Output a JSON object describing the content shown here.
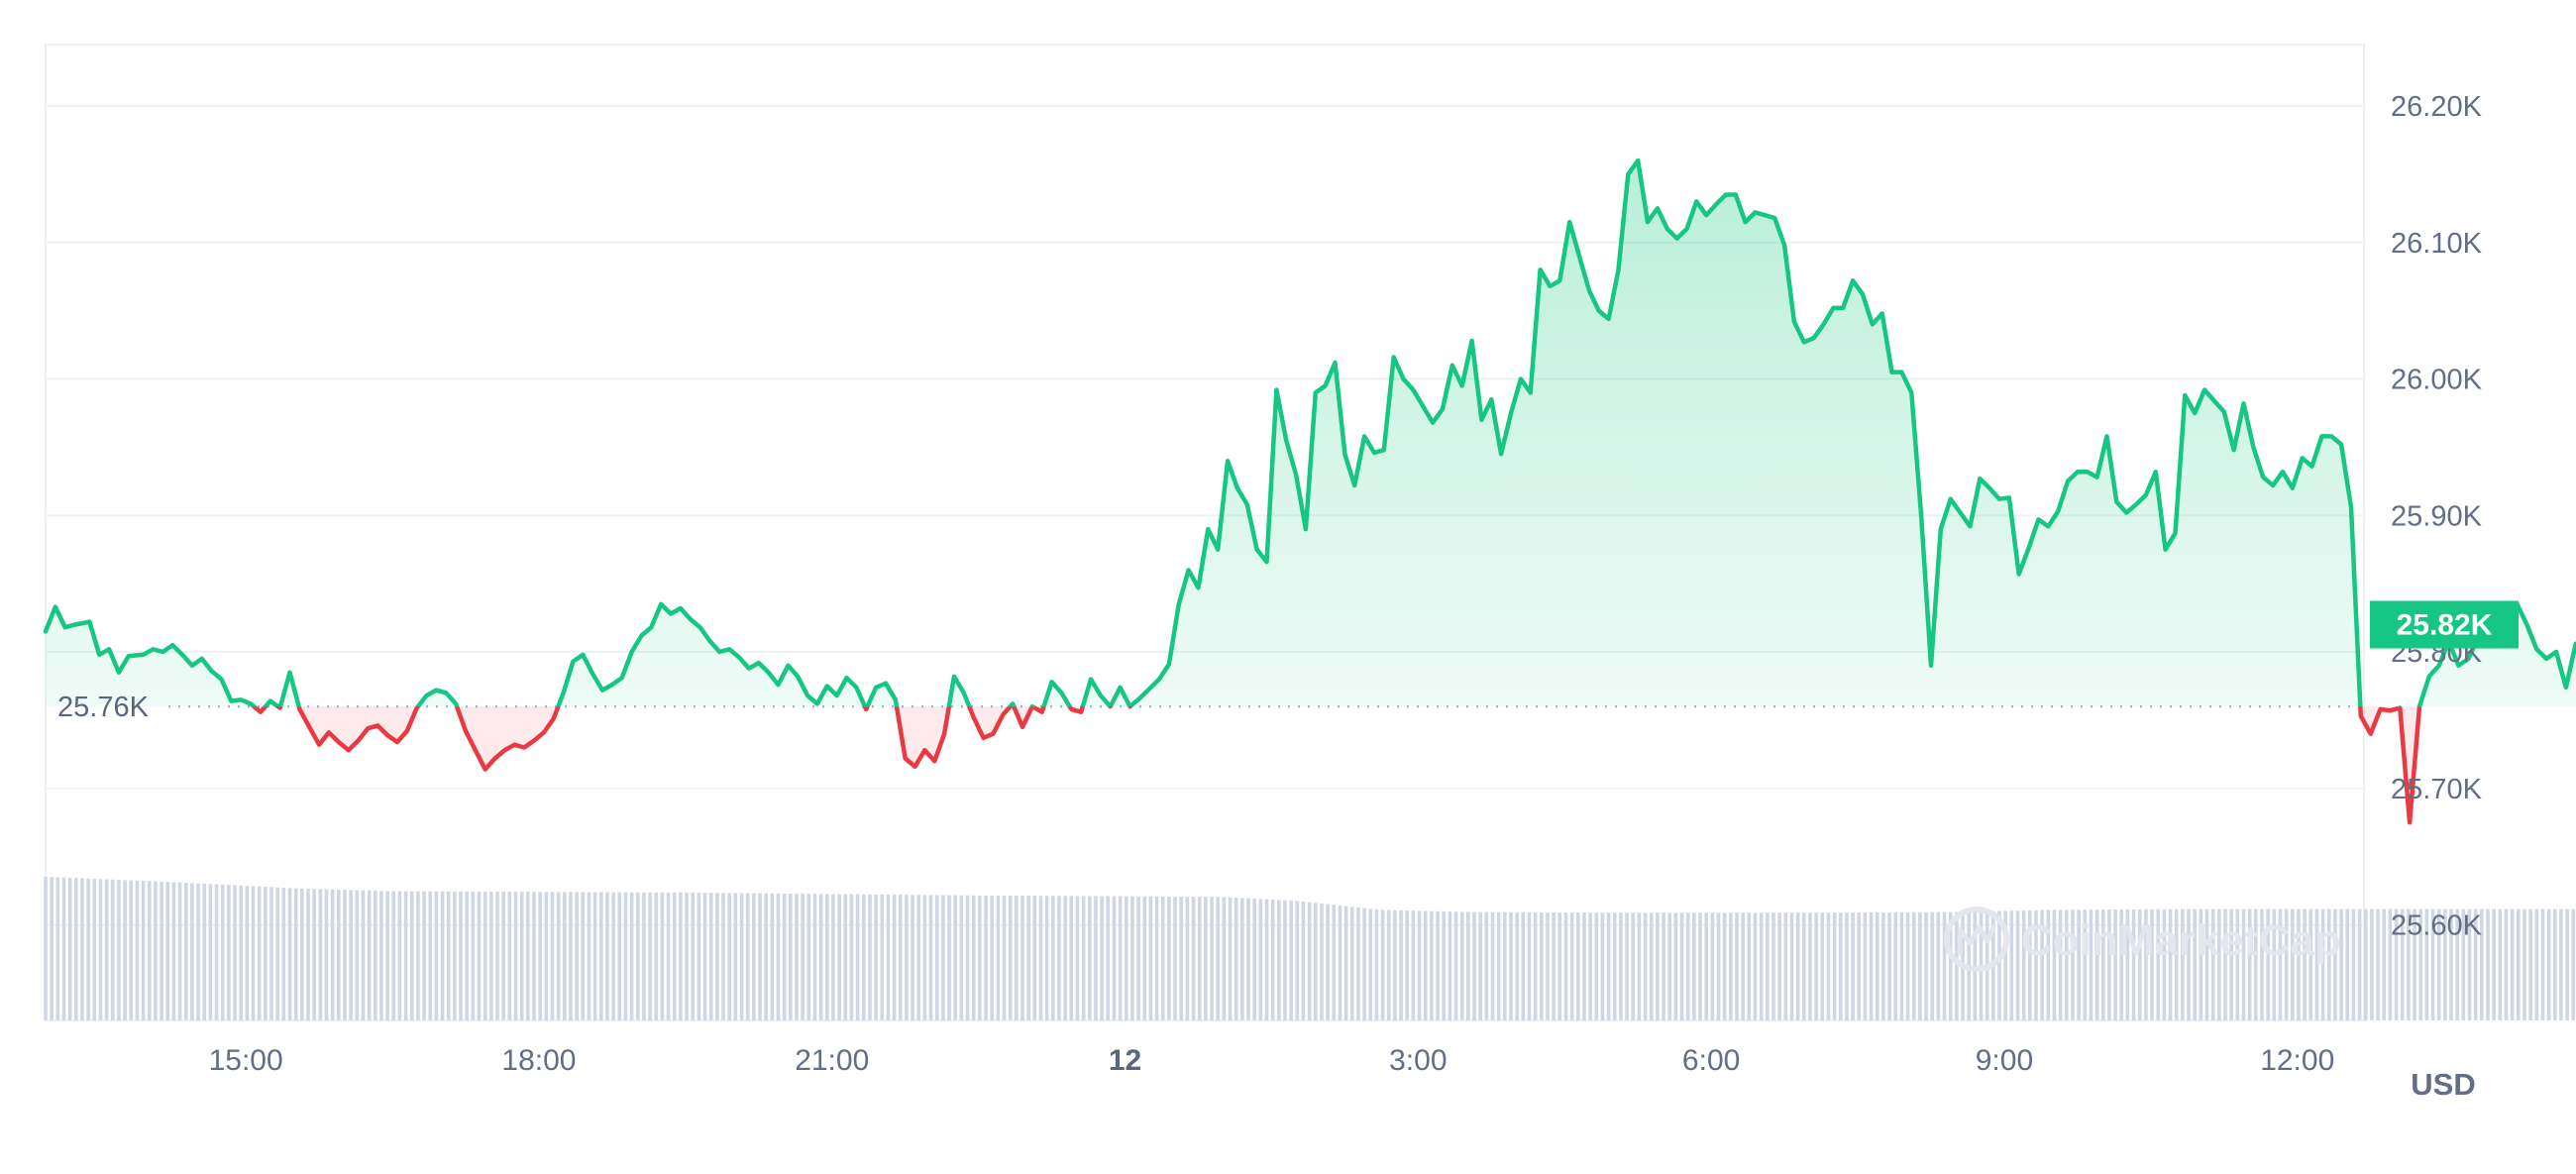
{
  "chart_data": {
    "type": "line",
    "title": "",
    "xlabel": "",
    "ylabel": "",
    "currency_label": "USD",
    "watermark": "CoinMarketCap",
    "reference_value": 25760,
    "reference_label": "25.76K",
    "current_value": 25820,
    "current_label": "25.82K",
    "ylim": [
      25530,
      26245
    ],
    "y_ticks": [
      {
        "value": 25600,
        "label": "25.60K"
      },
      {
        "value": 25700,
        "label": "25.70K"
      },
      {
        "value": 25800,
        "label": "25.80K"
      },
      {
        "value": 25900,
        "label": "25.90K"
      },
      {
        "value": 26000,
        "label": "26.00K"
      },
      {
        "value": 26100,
        "label": "26.10K"
      },
      {
        "value": 26200,
        "label": "26.20K"
      }
    ],
    "x_range_hours": [
      -2.05,
      22.3
    ],
    "x_ticks": [
      {
        "hour": 0,
        "label": "15:00",
        "bold": false
      },
      {
        "hour": 3,
        "label": "18:00",
        "bold": false
      },
      {
        "hour": 6,
        "label": "21:00",
        "bold": false
      },
      {
        "hour": 9,
        "label": "12",
        "bold": true
      },
      {
        "hour": 12,
        "label": "3:00",
        "bold": false
      },
      {
        "hour": 15,
        "label": "6:00",
        "bold": false
      },
      {
        "hour": 18,
        "label": "9:00",
        "bold": false
      },
      {
        "hour": 21,
        "label": "12:00",
        "bold": false
      }
    ],
    "colors": {
      "up": "#16c784",
      "down": "#ea3943",
      "volume": "#cfd6e4",
      "grid": "#eff2f5"
    },
    "series": [
      {
        "values": [
          [
            -2.05,
            25815
          ],
          [
            -1.95,
            25833
          ],
          [
            -1.85,
            25818
          ],
          [
            -1.75,
            25820
          ],
          [
            -1.6,
            25822
          ],
          [
            -1.5,
            25798
          ],
          [
            -1.4,
            25802
          ],
          [
            -1.3,
            25785
          ],
          [
            -1.2,
            25797
          ],
          [
            -1.05,
            25798
          ],
          [
            -0.95,
            25802
          ],
          [
            -0.85,
            25800
          ],
          [
            -0.75,
            25805
          ],
          [
            -0.65,
            25798
          ],
          [
            -0.55,
            25790
          ],
          [
            -0.45,
            25795
          ],
          [
            -0.35,
            25786
          ],
          [
            -0.25,
            25780
          ],
          [
            -0.15,
            25764
          ],
          [
            -0.05,
            25765
          ],
          [
            0.05,
            25762
          ],
          [
            0.15,
            25756
          ],
          [
            0.25,
            25764
          ],
          [
            0.35,
            25759
          ],
          [
            0.45,
            25785
          ],
          [
            0.55,
            25758
          ],
          [
            0.65,
            25745
          ],
          [
            0.75,
            25732
          ],
          [
            0.85,
            25741
          ],
          [
            0.95,
            25734
          ],
          [
            1.05,
            25728
          ],
          [
            1.15,
            25735
          ],
          [
            1.25,
            25744
          ],
          [
            1.35,
            25746
          ],
          [
            1.45,
            25739
          ],
          [
            1.55,
            25734
          ],
          [
            1.65,
            25742
          ],
          [
            1.75,
            25759
          ],
          [
            1.85,
            25768
          ],
          [
            1.95,
            25772
          ],
          [
            2.05,
            25770
          ],
          [
            2.15,
            25762
          ],
          [
            2.25,
            25742
          ],
          [
            2.35,
            25728
          ],
          [
            2.45,
            25714
          ],
          [
            2.55,
            25722
          ],
          [
            2.65,
            25728
          ],
          [
            2.75,
            25732
          ],
          [
            2.85,
            25730
          ],
          [
            2.95,
            25735
          ],
          [
            3.05,
            25741
          ],
          [
            3.15,
            25751
          ],
          [
            3.25,
            25770
          ],
          [
            3.35,
            25793
          ],
          [
            3.45,
            25798
          ],
          [
            3.55,
            25784
          ],
          [
            3.65,
            25772
          ],
          [
            3.75,
            25776
          ],
          [
            3.85,
            25781
          ],
          [
            3.95,
            25800
          ],
          [
            4.05,
            25812
          ],
          [
            4.15,
            25818
          ],
          [
            4.25,
            25835
          ],
          [
            4.35,
            25828
          ],
          [
            4.45,
            25832
          ],
          [
            4.55,
            25824
          ],
          [
            4.65,
            25818
          ],
          [
            4.75,
            25808
          ],
          [
            4.85,
            25800
          ],
          [
            4.95,
            25802
          ],
          [
            5.05,
            25796
          ],
          [
            5.15,
            25788
          ],
          [
            5.25,
            25792
          ],
          [
            5.35,
            25785
          ],
          [
            5.45,
            25776
          ],
          [
            5.55,
            25790
          ],
          [
            5.65,
            25782
          ],
          [
            5.75,
            25768
          ],
          [
            5.85,
            25762
          ],
          [
            5.95,
            25775
          ],
          [
            6.05,
            25768
          ],
          [
            6.15,
            25781
          ],
          [
            6.25,
            25774
          ],
          [
            6.35,
            25758
          ],
          [
            6.45,
            25774
          ],
          [
            6.55,
            25777
          ],
          [
            6.65,
            25765
          ],
          [
            6.75,
            25722
          ],
          [
            6.85,
            25716
          ],
          [
            6.95,
            25728
          ],
          [
            7.05,
            25720
          ],
          [
            7.15,
            25740
          ],
          [
            7.25,
            25782
          ],
          [
            7.35,
            25770
          ],
          [
            7.45,
            25752
          ],
          [
            7.55,
            25737
          ],
          [
            7.65,
            25740
          ],
          [
            7.75,
            25754
          ],
          [
            7.85,
            25762
          ],
          [
            7.95,
            25745
          ],
          [
            8.05,
            25760
          ],
          [
            8.15,
            25756
          ],
          [
            8.25,
            25778
          ],
          [
            8.35,
            25770
          ],
          [
            8.45,
            25758
          ],
          [
            8.55,
            25756
          ],
          [
            8.65,
            25780
          ],
          [
            8.75,
            25768
          ],
          [
            8.85,
            25760
          ],
          [
            8.95,
            25774
          ],
          [
            9.05,
            25760
          ],
          [
            9.15,
            25766
          ],
          [
            9.25,
            25773
          ],
          [
            9.35,
            25780
          ],
          [
            9.45,
            25791
          ],
          [
            9.55,
            25835
          ],
          [
            9.65,
            25860
          ],
          [
            9.75,
            25847
          ],
          [
            9.85,
            25890
          ],
          [
            9.95,
            25875
          ],
          [
            10.05,
            25940
          ],
          [
            10.15,
            25920
          ],
          [
            10.25,
            25908
          ],
          [
            10.35,
            25875
          ],
          [
            10.45,
            25866
          ],
          [
            10.55,
            25992
          ],
          [
            10.65,
            25955
          ],
          [
            10.75,
            25930
          ],
          [
            10.85,
            25890
          ],
          [
            10.95,
            25990
          ],
          [
            11.05,
            25995
          ],
          [
            11.15,
            26012
          ],
          [
            11.25,
            25945
          ],
          [
            11.35,
            25922
          ],
          [
            11.45,
            25958
          ],
          [
            11.55,
            25946
          ],
          [
            11.65,
            25948
          ],
          [
            11.75,
            26016
          ],
          [
            11.85,
            26000
          ],
          [
            11.95,
            25992
          ],
          [
            12.05,
            25980
          ],
          [
            12.15,
            25968
          ],
          [
            12.25,
            25978
          ],
          [
            12.35,
            26010
          ],
          [
            12.45,
            25995
          ],
          [
            12.55,
            26028
          ],
          [
            12.65,
            25970
          ],
          [
            12.75,
            25985
          ],
          [
            12.85,
            25945
          ],
          [
            12.95,
            25975
          ],
          [
            13.05,
            26000
          ],
          [
            13.15,
            25990
          ],
          [
            13.25,
            26080
          ],
          [
            13.35,
            26068
          ],
          [
            13.45,
            26072
          ],
          [
            13.55,
            26115
          ],
          [
            13.65,
            26090
          ],
          [
            13.75,
            26065
          ],
          [
            13.85,
            26050
          ],
          [
            13.95,
            26044
          ],
          [
            14.05,
            26080
          ],
          [
            14.15,
            26150
          ],
          [
            14.25,
            26160
          ],
          [
            14.35,
            26115
          ],
          [
            14.45,
            26125
          ],
          [
            14.55,
            26110
          ],
          [
            14.65,
            26103
          ],
          [
            14.75,
            26110
          ],
          [
            14.85,
            26130
          ],
          [
            14.95,
            26120
          ],
          [
            15.05,
            26128
          ],
          [
            15.15,
            26135
          ],
          [
            15.25,
            26135
          ],
          [
            15.35,
            26115
          ],
          [
            15.45,
            26122
          ],
          [
            15.55,
            26120
          ],
          [
            15.65,
            26118
          ],
          [
            15.75,
            26098
          ],
          [
            15.85,
            26042
          ],
          [
            15.95,
            26027
          ],
          [
            16.05,
            26030
          ],
          [
            16.15,
            26040
          ],
          [
            16.25,
            26052
          ],
          [
            16.35,
            26052
          ],
          [
            16.45,
            26072
          ],
          [
            16.55,
            26062
          ],
          [
            16.65,
            26040
          ],
          [
            16.75,
            26048
          ],
          [
            16.85,
            26005
          ],
          [
            16.95,
            26005
          ],
          [
            17.05,
            25990
          ],
          [
            17.15,
            25900
          ],
          [
            17.25,
            25790
          ],
          [
            17.35,
            25890
          ],
          [
            17.45,
            25912
          ],
          [
            17.55,
            25902
          ],
          [
            17.65,
            25892
          ],
          [
            17.75,
            25927
          ],
          [
            17.85,
            25920
          ],
          [
            17.95,
            25912
          ],
          [
            18.05,
            25913
          ],
          [
            18.15,
            25857
          ],
          [
            18.25,
            25876
          ],
          [
            18.35,
            25897
          ],
          [
            18.45,
            25892
          ],
          [
            18.55,
            25903
          ],
          [
            18.65,
            25925
          ],
          [
            18.75,
            25932
          ],
          [
            18.85,
            25932
          ],
          [
            18.95,
            25928
          ],
          [
            19.05,
            25958
          ],
          [
            19.15,
            25910
          ],
          [
            19.25,
            25902
          ],
          [
            19.35,
            25908
          ],
          [
            19.45,
            25915
          ],
          [
            19.55,
            25932
          ],
          [
            19.65,
            25875
          ],
          [
            19.75,
            25887
          ],
          [
            19.85,
            25988
          ],
          [
            19.95,
            25975
          ],
          [
            20.05,
            25992
          ],
          [
            20.15,
            25984
          ],
          [
            20.25,
            25976
          ],
          [
            20.35,
            25948
          ],
          [
            20.45,
            25982
          ],
          [
            20.55,
            25950
          ],
          [
            20.65,
            25928
          ],
          [
            20.75,
            25922
          ],
          [
            20.85,
            25932
          ],
          [
            20.95,
            25920
          ],
          [
            21.05,
            25942
          ],
          [
            21.15,
            25936
          ],
          [
            21.25,
            25958
          ],
          [
            21.35,
            25958
          ],
          [
            21.45,
            25952
          ],
          [
            21.55,
            25906
          ],
          [
            21.65,
            25753
          ],
          [
            21.75,
            25740
          ],
          [
            21.85,
            25758
          ],
          [
            21.95,
            25757
          ],
          [
            22.05,
            25759
          ],
          [
            22.15,
            25675
          ],
          [
            22.25,
            25760
          ],
          [
            22.35,
            25782
          ],
          [
            22.45,
            25790
          ],
          [
            22.55,
            25808
          ],
          [
            22.65,
            25790
          ],
          [
            22.75,
            25795
          ],
          [
            22.85,
            25810
          ],
          [
            22.95,
            25812
          ],
          [
            23.05,
            25825
          ],
          [
            23.15,
            25818
          ],
          [
            23.25,
            25835
          ],
          [
            23.35,
            25820
          ],
          [
            23.45,
            25802
          ],
          [
            23.55,
            25795
          ],
          [
            23.65,
            25800
          ],
          [
            23.75,
            25774
          ],
          [
            23.85,
            25806
          ],
          [
            23.95,
            25801
          ],
          [
            24.05,
            25820
          ],
          [
            24.15,
            25816
          ],
          [
            24.25,
            25815
          ],
          [
            24.35,
            25796
          ],
          [
            24.45,
            25800
          ],
          [
            24.55,
            25818
          ],
          [
            24.65,
            25812
          ],
          [
            24.75,
            25803
          ],
          [
            24.85,
            25818
          ],
          [
            24.95,
            25806
          ],
          [
            25.05,
            25796
          ],
          [
            25.15,
            25800
          ],
          [
            25.25,
            25810
          ],
          [
            25.35,
            25820
          ]
        ]
      }
    ],
    "volume": {
      "x_start": -2.05,
      "x_end": 25.35,
      "relative_heights": [
        [
          -2.05,
          1.0
        ],
        [
          -1.5,
          0.985
        ],
        [
          -0.5,
          0.955
        ],
        [
          0.5,
          0.92
        ],
        [
          1.5,
          0.9
        ],
        [
          3.0,
          0.895
        ],
        [
          4.5,
          0.89
        ],
        [
          6.0,
          0.88
        ],
        [
          7.5,
          0.87
        ],
        [
          9.0,
          0.865
        ],
        [
          10.0,
          0.86
        ],
        [
          10.8,
          0.83
        ],
        [
          11.6,
          0.77
        ],
        [
          12.5,
          0.755
        ],
        [
          14.0,
          0.75
        ],
        [
          16.0,
          0.75
        ],
        [
          17.5,
          0.755
        ],
        [
          18.5,
          0.77
        ],
        [
          20.0,
          0.775
        ],
        [
          22.0,
          0.775
        ],
        [
          25.35,
          0.775
        ]
      ]
    }
  }
}
